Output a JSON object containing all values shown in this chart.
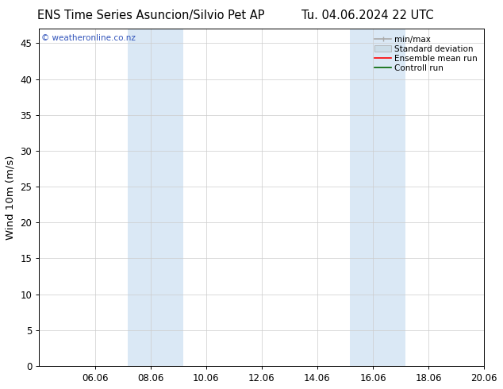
{
  "title_left": "ENS Time Series Asuncion/Silvio Pet AP",
  "title_right": "Tu. 04.06.2024 22 UTC",
  "ylabel": "Wind 10m (m/s)",
  "ylim": [
    0,
    47
  ],
  "yticks": [
    0,
    5,
    10,
    15,
    20,
    25,
    30,
    35,
    40,
    45
  ],
  "xtick_labels": [
    "06.06",
    "08.06",
    "10.06",
    "12.06",
    "14.06",
    "16.06",
    "18.06",
    "20.06"
  ],
  "xtick_positions_days": [
    2,
    4,
    6,
    8,
    10,
    12,
    14,
    16
  ],
  "shaded_bands": [
    {
      "x_start_days": 3.17,
      "x_end_days": 5.17,
      "color": "#dae8f5"
    },
    {
      "x_start_days": 11.17,
      "x_end_days": 13.17,
      "color": "#dae8f5"
    }
  ],
  "background_color": "#ffffff",
  "plot_bg_color": "#ffffff",
  "grid_color": "#cccccc",
  "watermark_text": "© weatheronline.co.nz",
  "watermark_color": "#3355bb",
  "legend_items": [
    {
      "label": "min/max",
      "color": "#aaaaaa",
      "lw": 1.2,
      "style": "minmax"
    },
    {
      "label": "Standard deviation",
      "color": "#ccdde8",
      "lw": 6,
      "style": "band"
    },
    {
      "label": "Ensemble mean run",
      "color": "#ff0000",
      "lw": 1.2,
      "style": "line"
    },
    {
      "label": "Controll run",
      "color": "#006600",
      "lw": 1.2,
      "style": "line"
    }
  ],
  "title_fontsize": 10.5,
  "tick_fontsize": 8.5,
  "label_fontsize": 9.5,
  "legend_fontsize": 7.5,
  "watermark_fontsize": 7.5,
  "total_days": 16
}
